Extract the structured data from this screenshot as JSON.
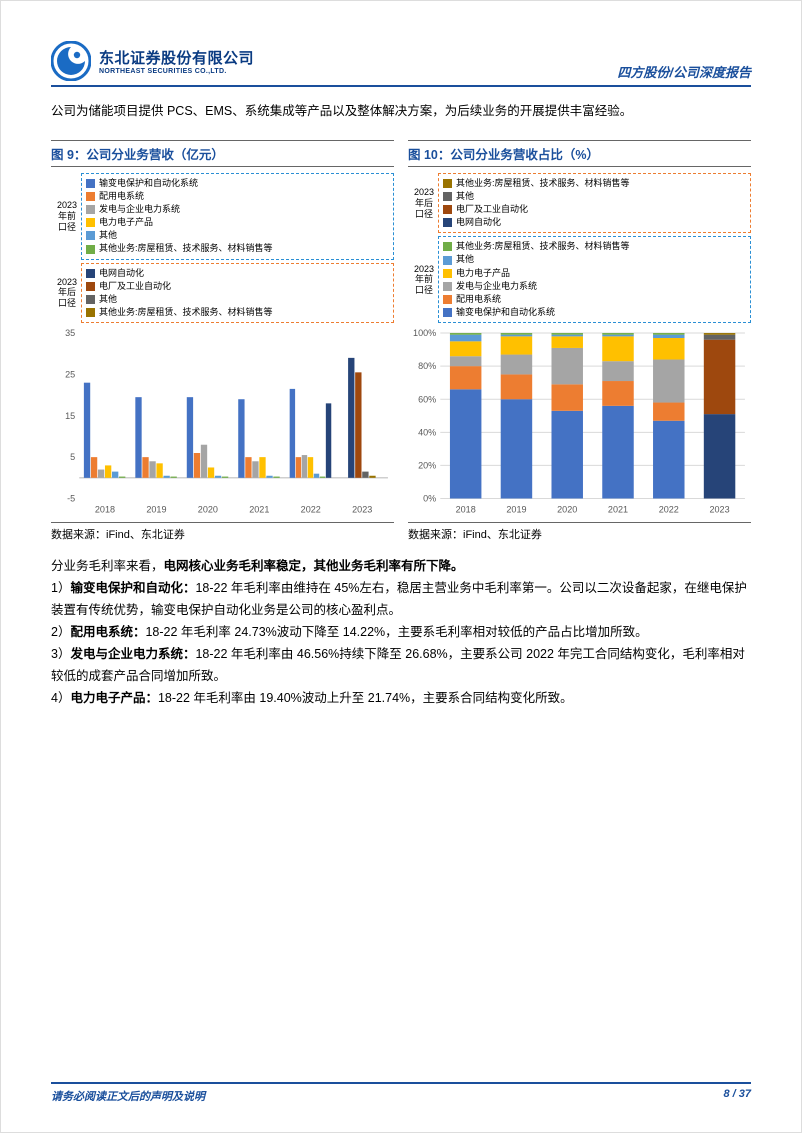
{
  "header": {
    "company_cn": "东北证券股份有限公司",
    "company_en": "NORTHEAST SECURITIES CO.,LTD.",
    "right_label": "四方股份/公司深度报告",
    "logo_color_outer": "#1a6bc4",
    "logo_color_inner": "#ffffff"
  },
  "intro": "公司为储能项目提供 PCS、EMS、系统集成等产品以及整体解决方案，为后续业务的开展提供丰富经验。",
  "figure9": {
    "title": "图 9：公司分业务营收（亿元）",
    "legend_top_label": "2023\n年前\n口径",
    "legend_bot_label": "2023\n年后\n口径",
    "legend_top_items": [
      {
        "label": "输变电保护和自动化系统",
        "color": "#4472c4"
      },
      {
        "label": "配用电系统",
        "color": "#ed7d31"
      },
      {
        "label": "发电与企业电力系统",
        "color": "#a5a5a5"
      },
      {
        "label": "电力电子产品",
        "color": "#ffc000"
      },
      {
        "label": "其他",
        "color": "#5b9bd5"
      },
      {
        "label": "其他业务:房屋租赁、技术服务、材料销售等",
        "color": "#70ad47"
      }
    ],
    "legend_bot_items": [
      {
        "label": "电网自动化",
        "color": "#264478"
      },
      {
        "label": "电厂及工业自动化",
        "color": "#9e480e"
      },
      {
        "label": "其他",
        "color": "#636363"
      },
      {
        "label": "其他业务:房屋租赁、技术服务、材料销售等",
        "color": "#997300"
      }
    ],
    "chart": {
      "type": "grouped-bar",
      "categories": [
        "2018",
        "2019",
        "2020",
        "2021",
        "2022",
        "2023"
      ],
      "ylim": [
        -5,
        35
      ],
      "yticks": [
        -5,
        5,
        15,
        25,
        35
      ],
      "background_color": "#ffffff",
      "series_pre2023": [
        {
          "name": "输变电保护和自动化系统",
          "color": "#4472c4",
          "values": [
            23,
            19.5,
            19.5,
            19,
            21.5,
            null
          ]
        },
        {
          "name": "配用电系统",
          "color": "#ed7d31",
          "values": [
            5,
            5,
            6,
            5,
            5,
            null
          ]
        },
        {
          "name": "发电与企业电力系统",
          "color": "#a5a5a5",
          "values": [
            2,
            4,
            8,
            4,
            5.5,
            null
          ]
        },
        {
          "name": "电力电子产品",
          "color": "#ffc000",
          "values": [
            3,
            3.5,
            2.5,
            5,
            5,
            null
          ]
        },
        {
          "name": "其他",
          "color": "#5b9bd5",
          "values": [
            1.5,
            0.5,
            0.5,
            0.5,
            1,
            null
          ]
        },
        {
          "name": "其他业务",
          "color": "#70ad47",
          "values": [
            0.3,
            0.3,
            0.3,
            0.3,
            0.3,
            null
          ]
        }
      ],
      "series_post2023": [
        {
          "name": "电网自动化",
          "color": "#264478",
          "values": [
            null,
            null,
            null,
            null,
            18,
            29
          ]
        },
        {
          "name": "电厂及工业自动化",
          "color": "#9e480e",
          "values": [
            null,
            null,
            null,
            null,
            null,
            25.5
          ]
        },
        {
          "name": "其他",
          "color": "#636363",
          "values": [
            null,
            null,
            null,
            null,
            null,
            1.5
          ]
        },
        {
          "name": "其他业务",
          "color": "#997300",
          "values": [
            null,
            null,
            null,
            null,
            null,
            0.5
          ]
        }
      ],
      "axis_color": "#bfbfbf",
      "label_fontsize": 9
    },
    "source": "数据来源：iFind、东北证券"
  },
  "figure10": {
    "title": "图 10：公司分业务营收占比（%）",
    "legend_top_label": "2023\n年后\n口径",
    "legend_bot_label": "2023\n年前\n口径",
    "legend_top_items": [
      {
        "label": "其他业务:房屋租赁、技术服务、材料销售等",
        "color": "#997300"
      },
      {
        "label": "其他",
        "color": "#636363"
      },
      {
        "label": "电厂及工业自动化",
        "color": "#9e480e"
      },
      {
        "label": "电网自动化",
        "color": "#264478"
      }
    ],
    "legend_bot_items": [
      {
        "label": "其他业务:房屋租赁、技术服务、材料销售等",
        "color": "#70ad47"
      },
      {
        "label": "其他",
        "color": "#5b9bd5"
      },
      {
        "label": "电力电子产品",
        "color": "#ffc000"
      },
      {
        "label": "发电与企业电力系统",
        "color": "#a5a5a5"
      },
      {
        "label": "配用电系统",
        "color": "#ed7d31"
      },
      {
        "label": "输变电保护和自动化系统",
        "color": "#4472c4"
      }
    ],
    "chart": {
      "type": "stacked-bar-100",
      "categories": [
        "2018",
        "2019",
        "2020",
        "2021",
        "2022",
        "2023"
      ],
      "ylim": [
        0,
        100
      ],
      "yticks": [
        0,
        20,
        40,
        60,
        80,
        100
      ],
      "grid_color": "#d9d9d9",
      "background_color": "#ffffff",
      "stacks": [
        {
          "year": "2018",
          "segments": [
            {
              "color": "#4472c4",
              "pct": 66
            },
            {
              "color": "#ed7d31",
              "pct": 14
            },
            {
              "color": "#a5a5a5",
              "pct": 6
            },
            {
              "color": "#ffc000",
              "pct": 9
            },
            {
              "color": "#5b9bd5",
              "pct": 4
            },
            {
              "color": "#70ad47",
              "pct": 1
            }
          ]
        },
        {
          "year": "2019",
          "segments": [
            {
              "color": "#4472c4",
              "pct": 60
            },
            {
              "color": "#ed7d31",
              "pct": 15
            },
            {
              "color": "#a5a5a5",
              "pct": 12
            },
            {
              "color": "#ffc000",
              "pct": 11
            },
            {
              "color": "#5b9bd5",
              "pct": 1
            },
            {
              "color": "#70ad47",
              "pct": 1
            }
          ]
        },
        {
          "year": "2020",
          "segments": [
            {
              "color": "#4472c4",
              "pct": 53
            },
            {
              "color": "#ed7d31",
              "pct": 16
            },
            {
              "color": "#a5a5a5",
              "pct": 22
            },
            {
              "color": "#ffc000",
              "pct": 7
            },
            {
              "color": "#5b9bd5",
              "pct": 1
            },
            {
              "color": "#70ad47",
              "pct": 1
            }
          ]
        },
        {
          "year": "2021",
          "segments": [
            {
              "color": "#4472c4",
              "pct": 56
            },
            {
              "color": "#ed7d31",
              "pct": 15
            },
            {
              "color": "#a5a5a5",
              "pct": 12
            },
            {
              "color": "#ffc000",
              "pct": 15
            },
            {
              "color": "#5b9bd5",
              "pct": 1
            },
            {
              "color": "#70ad47",
              "pct": 1
            }
          ]
        },
        {
          "year": "2022",
          "segments": [
            {
              "color": "#4472c4",
              "pct": 47
            },
            {
              "color": "#ed7d31",
              "pct": 11
            },
            {
              "color": "#a5a5a5",
              "pct": 26
            },
            {
              "color": "#ffc000",
              "pct": 13
            },
            {
              "color": "#5b9bd5",
              "pct": 2
            },
            {
              "color": "#70ad47",
              "pct": 1
            }
          ]
        },
        {
          "year": "2023",
          "segments": [
            {
              "color": "#264478",
              "pct": 51
            },
            {
              "color": "#9e480e",
              "pct": 45
            },
            {
              "color": "#636363",
              "pct": 3
            },
            {
              "color": "#997300",
              "pct": 1
            }
          ]
        }
      ],
      "label_fontsize": 9
    },
    "source": "数据来源：iFind、东北证券"
  },
  "body": {
    "lead": "分业务毛利率来看，",
    "lead_bold": "电网核心业务毛利率稳定，其他业务毛利率有所下降。",
    "items": [
      {
        "n": "1）",
        "b": "输变电保护和自动化：",
        "t": "18-22 年毛利率由维持在 45%左右，稳居主营业务中毛利率第一。公司以二次设备起家，在继电保护装置有传统优势，输变电保护自动化业务是公司的核心盈利点。"
      },
      {
        "n": "2）",
        "b": "配用电系统：",
        "t": "18-22 年毛利率 24.73%波动下降至 14.22%，主要系毛利率相对较低的产品占比增加所致。"
      },
      {
        "n": "3）",
        "b": "发电与企业电力系统：",
        "t": "18-22 年毛利率由 46.56%持续下降至 26.68%，主要系公司 2022 年完工合同结构变化，毛利率相对较低的成套产品合同增加所致。"
      },
      {
        "n": "4）",
        "b": "电力电子产品：",
        "t": "18-22 年毛利率由 19.40%波动上升至 21.74%，主要系合同结构变化所致。"
      }
    ]
  },
  "footer": {
    "left": "请务必阅读正文后的声明及说明",
    "right": "8 / 37"
  }
}
